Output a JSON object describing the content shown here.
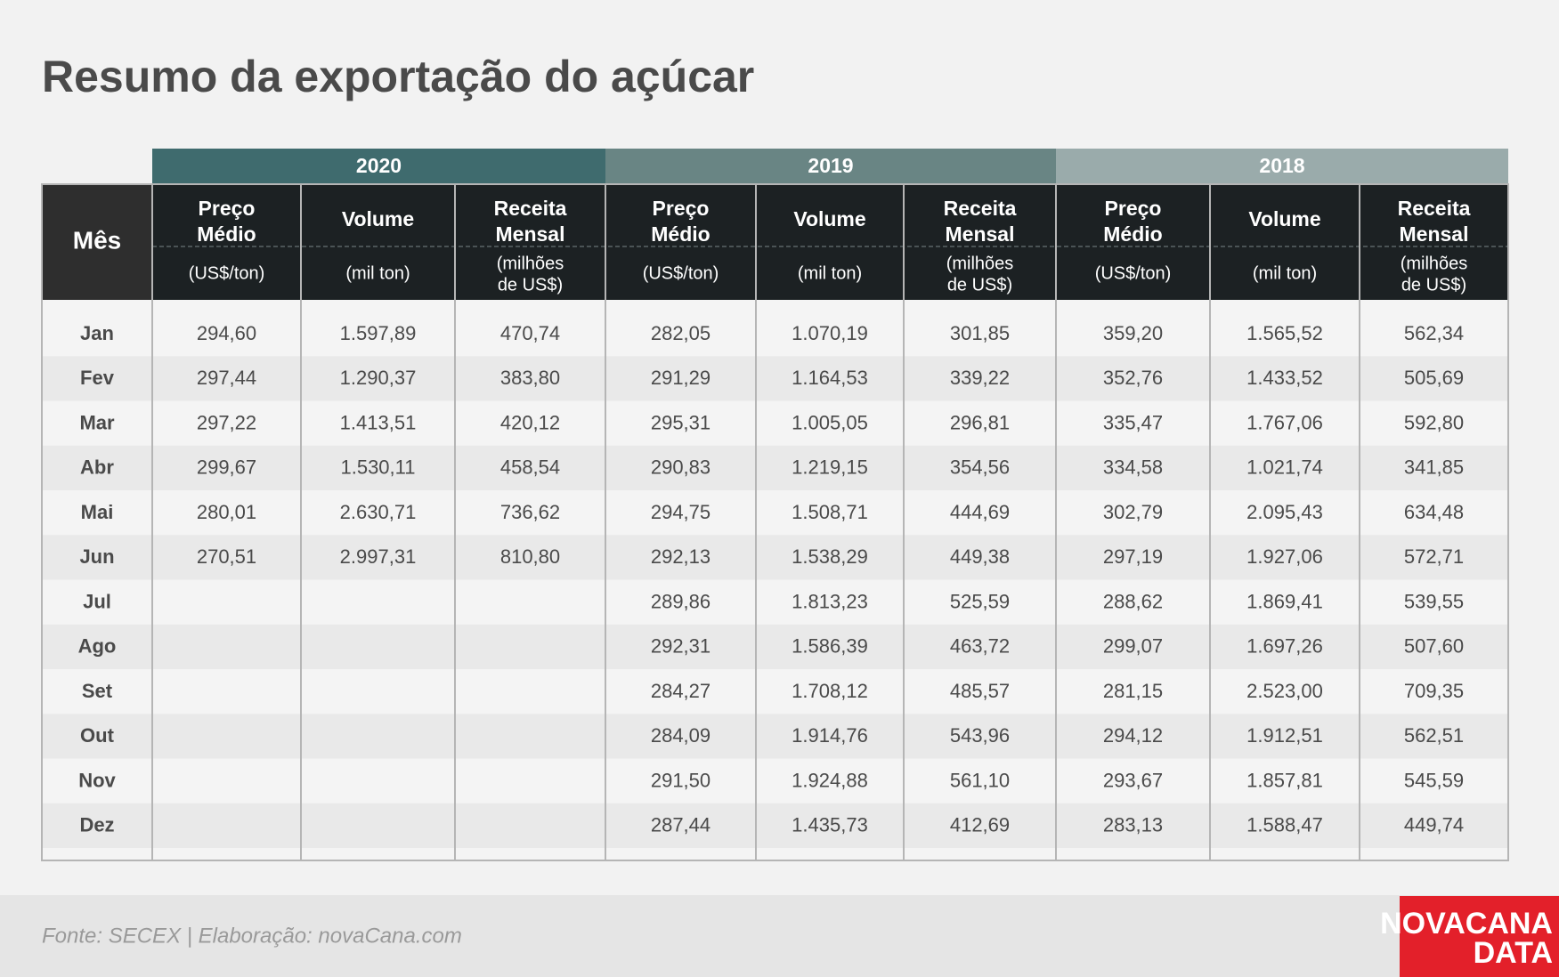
{
  "title": "Resumo da exportação do açúcar",
  "table": {
    "month_header": "Mês",
    "years": [
      "2020",
      "2019",
      "2018"
    ],
    "columns": [
      {
        "name": [
          "Preço",
          "Médio"
        ],
        "unit": [
          "(US$/ton)"
        ]
      },
      {
        "name": [
          "Volume"
        ],
        "unit": [
          "(mil ton)"
        ]
      },
      {
        "name": [
          "Receita",
          "Mensal"
        ],
        "unit": [
          "(milhões",
          "de US$)"
        ]
      }
    ],
    "rows": [
      [
        "Jan",
        "294,60",
        "1.597,89",
        "470,74",
        "282,05",
        "1.070,19",
        "301,85",
        "359,20",
        "1.565,52",
        "562,34"
      ],
      [
        "Fev",
        "297,44",
        "1.290,37",
        "383,80",
        "291,29",
        "1.164,53",
        "339,22",
        "352,76",
        "1.433,52",
        "505,69"
      ],
      [
        "Mar",
        "297,22",
        "1.413,51",
        "420,12",
        "295,31",
        "1.005,05",
        "296,81",
        "335,47",
        "1.767,06",
        "592,80"
      ],
      [
        "Abr",
        "299,67",
        "1.530,11",
        "458,54",
        "290,83",
        "1.219,15",
        "354,56",
        "334,58",
        "1.021,74",
        "341,85"
      ],
      [
        "Mai",
        "280,01",
        "2.630,71",
        "736,62",
        "294,75",
        "1.508,71",
        "444,69",
        "302,79",
        "2.095,43",
        "634,48"
      ],
      [
        "Jun",
        "270,51",
        "2.997,31",
        "810,80",
        "292,13",
        "1.538,29",
        "449,38",
        "297,19",
        "1.927,06",
        "572,71"
      ],
      [
        "Jul",
        null,
        null,
        null,
        "289,86",
        "1.813,23",
        "525,59",
        "288,62",
        "1.869,41",
        "539,55"
      ],
      [
        "Ago",
        null,
        null,
        null,
        "292,31",
        "1.586,39",
        "463,72",
        "299,07",
        "1.697,26",
        "507,60"
      ],
      [
        "Set",
        null,
        null,
        null,
        "284,27",
        "1.708,12",
        "485,57",
        "281,15",
        "2.523,00",
        "709,35"
      ],
      [
        "Out",
        null,
        null,
        null,
        "284,09",
        "1.914,76",
        "543,96",
        "294,12",
        "1.912,51",
        "562,51"
      ],
      [
        "Nov",
        null,
        null,
        null,
        "291,50",
        "1.924,88",
        "561,10",
        "293,67",
        "1.857,81",
        "545,59"
      ],
      [
        "Dez",
        null,
        null,
        null,
        "287,44",
        "1.435,73",
        "412,69",
        "283,13",
        "1.588,47",
        "449,74"
      ]
    ]
  },
  "source": "Fonte: SECEX | Elaboração: novaCana.com",
  "logo": [
    "NOVACANA",
    "DATA"
  ]
}
